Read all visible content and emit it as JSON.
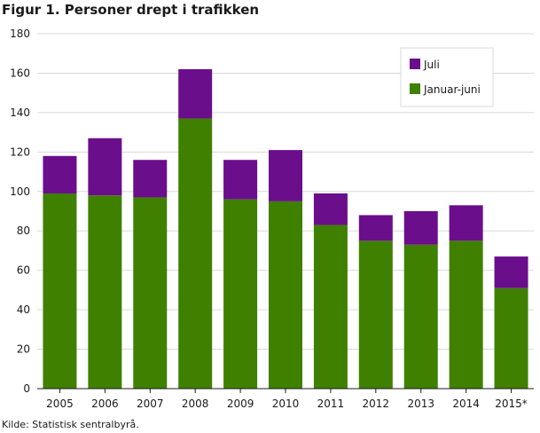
{
  "title": "Figur 1. Personer drept i trafikken",
  "source": "Kilde: Statistisk sentralbyrå.",
  "chart_data": {
    "type": "bar",
    "stacked": true,
    "categories": [
      "2005",
      "2006",
      "2007",
      "2008",
      "2009",
      "2010",
      "2011",
      "2012",
      "2013",
      "2014",
      "2015*"
    ],
    "series": [
      {
        "name": "Januar-juni",
        "color": "#3f8000",
        "values": [
          99,
          98,
          97,
          137,
          96,
          95,
          83,
          75,
          73,
          75,
          51
        ]
      },
      {
        "name": "Juli",
        "color": "#6a0e8c",
        "values": [
          19,
          29,
          19,
          25,
          20,
          26,
          16,
          13,
          17,
          18,
          16
        ]
      }
    ],
    "ylim": [
      0,
      180
    ],
    "yticks": [
      0,
      20,
      40,
      60,
      80,
      100,
      120,
      140,
      160,
      180
    ],
    "grid": true,
    "legend_position": "top-right",
    "xlabel": "",
    "ylabel": ""
  }
}
